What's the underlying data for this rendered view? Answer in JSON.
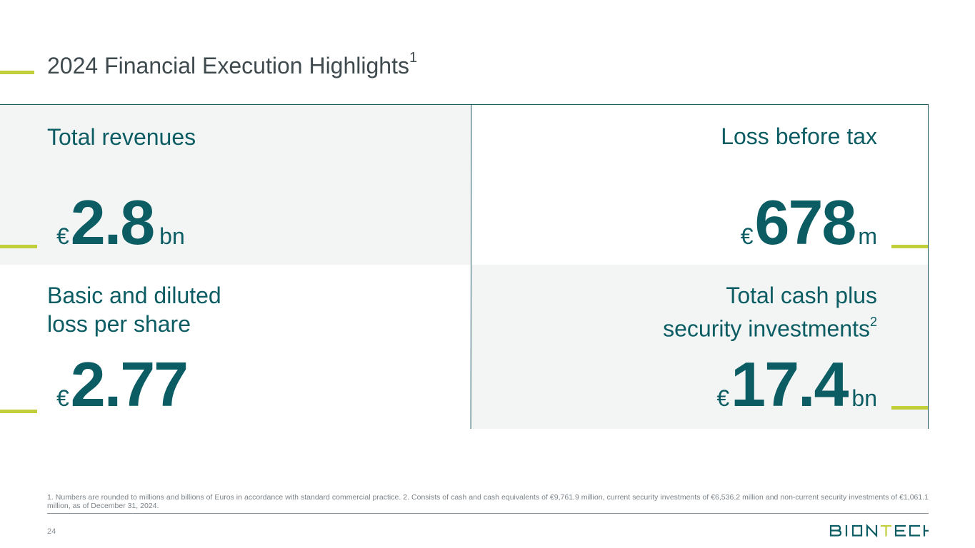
{
  "slide": {
    "title": "2024 Financial Execution Highlights",
    "title_sup": "1",
    "page_number": "24",
    "footnote": "1. Numbers are rounded to millions and billions of Euros in accordance with standard commercial practice. 2. Consists of cash and cash equivalents of €9,761.9 million, current security investments of €6,536.2 million and non-current security investments of €1,061.1 million, as of December 31, 2024."
  },
  "metrics": {
    "revenues": {
      "label": "Total revenues",
      "currency": "€",
      "value": "2.8",
      "unit": "bn"
    },
    "loss_before_tax": {
      "label": "Loss before tax",
      "currency": "€",
      "value": "678",
      "unit": "m"
    },
    "eps": {
      "label_line1": "Basic and diluted",
      "label_line2": "loss per share",
      "currency": "€",
      "value": "2.77"
    },
    "cash": {
      "label_line1": "Total cash plus",
      "label_line2": "security investments",
      "label_sup": "2",
      "currency": "€",
      "value": "17.4",
      "unit": "bn"
    }
  },
  "brand": {
    "logo_text": "BIONTECH",
    "accent_color": "#c1cf3a",
    "primary_color": "#0b5c63"
  }
}
